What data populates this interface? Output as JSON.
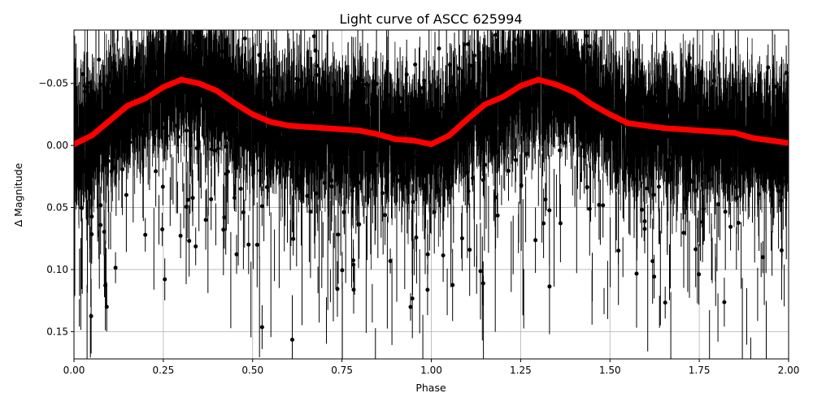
{
  "chart_data": {
    "type": "scatter",
    "title": "Light curve of ASCC 625994",
    "xlabel": "Phase",
    "ylabel": "Δ Magnitude",
    "xlim": [
      0,
      2
    ],
    "ylim": [
      0.172,
      -0.093
    ],
    "y_inverted": true,
    "grid": true,
    "xticks": [
      0,
      0.25,
      0.5,
      0.75,
      1,
      1.25,
      1.5,
      1.75,
      2
    ],
    "xtick_labels": [
      "0.00",
      "0.25",
      "0.50",
      "0.75",
      "1.00",
      "1.25",
      "1.50",
      "1.75",
      "2.00"
    ],
    "yticks": [
      -0.05,
      0,
      0.05,
      0.1,
      0.15
    ],
    "ytick_labels": [
      "−0.05",
      "0.00",
      "0.05",
      "0.10",
      "0.15"
    ],
    "series": [
      {
        "role": "binned mean",
        "color": "#ff0000",
        "x": [
          0,
          0.05,
          0.1,
          0.15,
          0.2,
          0.25,
          0.3,
          0.35,
          0.4,
          0.45,
          0.5,
          0.55,
          0.6,
          0.65,
          0.7,
          0.75,
          0.8,
          0.85,
          0.9,
          0.95,
          1.0,
          1.05,
          1.1,
          1.15,
          1.2,
          1.25,
          1.3,
          1.35,
          1.4,
          1.45,
          1.5,
          1.55,
          1.6,
          1.65,
          1.7,
          1.75,
          1.8,
          1.85,
          1.9,
          1.95,
          2.0
        ],
        "y": [
          -0.001,
          -0.008,
          -0.02,
          -0.032,
          -0.038,
          -0.047,
          -0.053,
          -0.05,
          -0.044,
          -0.034,
          -0.025,
          -0.019,
          -0.016,
          -0.015,
          -0.014,
          -0.013,
          -0.012,
          -0.009,
          -0.005,
          -0.004,
          -0.001,
          -0.008,
          -0.021,
          -0.033,
          -0.039,
          -0.048,
          -0.053,
          -0.049,
          -0.043,
          -0.033,
          -0.025,
          -0.018,
          -0.016,
          -0.014,
          -0.013,
          -0.012,
          -0.011,
          -0.01,
          -0.006,
          -0.004,
          -0.002
        ]
      },
      {
        "role": "observations with error bars",
        "color": "#000000"
      }
    ]
  }
}
